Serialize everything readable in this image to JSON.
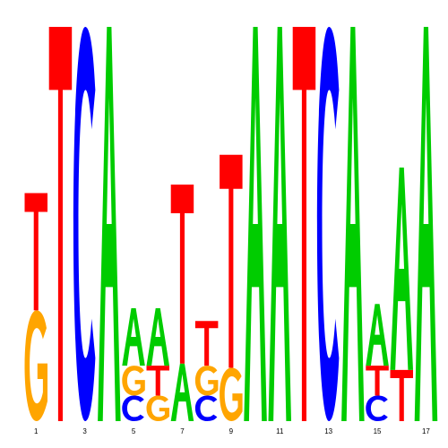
{
  "colors": {
    "A": "#00cc00",
    "C": "#0000ff",
    "G": "#ffa500",
    "T": "#ff0000"
  },
  "max_bits": 2,
  "positions": [
    {
      "label": "1",
      "stack": [
        {
          "base": "G",
          "bits": 0.52
        },
        {
          "base": "T",
          "bits": 0.55
        }
      ]
    },
    {
      "label": "",
      "stack": [
        {
          "base": "T",
          "bits": 1.85
        }
      ]
    },
    {
      "label": "3",
      "stack": [
        {
          "base": "C",
          "bits": 1.85
        }
      ]
    },
    {
      "label": "",
      "stack": [
        {
          "base": "A",
          "bits": 1.85
        }
      ]
    },
    {
      "label": "5",
      "stack": [
        {
          "base": "C",
          "bits": 0.12
        },
        {
          "base": "G",
          "bits": 0.14
        },
        {
          "base": "A",
          "bits": 0.27
        }
      ]
    },
    {
      "label": "",
      "stack": [
        {
          "base": "G",
          "bits": 0.12
        },
        {
          "base": "T",
          "bits": 0.14
        },
        {
          "base": "A",
          "bits": 0.27
        }
      ]
    },
    {
      "label": "7",
      "stack": [
        {
          "base": "A",
          "bits": 0.27
        },
        {
          "base": "T",
          "bits": 0.84
        }
      ]
    },
    {
      "label": "",
      "stack": [
        {
          "base": "C",
          "bits": 0.12
        },
        {
          "base": "G",
          "bits": 0.14
        },
        {
          "base": "T",
          "bits": 0.21
        }
      ]
    },
    {
      "label": "9",
      "stack": [
        {
          "base": "G",
          "bits": 0.25
        },
        {
          "base": "T",
          "bits": 1.0
        }
      ]
    },
    {
      "label": "",
      "stack": [
        {
          "base": "A",
          "bits": 1.85
        }
      ]
    },
    {
      "label": "11",
      "stack": [
        {
          "base": "A",
          "bits": 1.85
        }
      ]
    },
    {
      "label": "",
      "stack": [
        {
          "base": "T",
          "bits": 1.85
        }
      ]
    },
    {
      "label": "13",
      "stack": [
        {
          "base": "C",
          "bits": 1.85
        }
      ]
    },
    {
      "label": "",
      "stack": [
        {
          "base": "A",
          "bits": 1.85
        }
      ]
    },
    {
      "label": "15",
      "stack": [
        {
          "base": "C",
          "bits": 0.12
        },
        {
          "base": "T",
          "bits": 0.14
        },
        {
          "base": "A",
          "bits": 0.29
        }
      ]
    },
    {
      "label": "",
      "stack": [
        {
          "base": "T",
          "bits": 0.24
        },
        {
          "base": "A",
          "bits": 0.95
        }
      ]
    },
    {
      "label": "17",
      "stack": [
        {
          "base": "A",
          "bits": 1.85
        }
      ]
    }
  ]
}
